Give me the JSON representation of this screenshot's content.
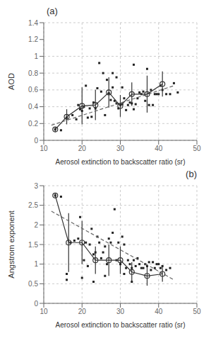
{
  "chart_data": [
    {
      "type": "scatter",
      "title": "(a)",
      "title_position": "left",
      "x_label": "Aerosol extinction to backscatter ratio (sr)",
      "y_label": "AOD",
      "xlim": [
        10,
        50
      ],
      "ylim": [
        0,
        1.4
      ],
      "xticks": [
        10,
        20,
        30,
        40,
        50
      ],
      "yticks": [
        0,
        0.2,
        0.4,
        0.6,
        0.8,
        1,
        1.2,
        1.4
      ],
      "grid": true,
      "series": [
        {
          "type": "scatter",
          "marker": "square",
          "color": "#222222",
          "x": [
            13.0,
            14.5,
            16.0,
            17.5,
            18.5,
            19.0,
            19.5,
            20.0,
            20.5,
            21.0,
            21.5,
            22.0,
            22.5,
            23.0,
            23.5,
            24.0,
            24.5,
            25.0,
            25.5,
            26.0,
            26.5,
            27.0,
            27.5,
            28.0,
            28.5,
            29.0,
            29.5,
            30.0,
            30.5,
            31.0,
            31.5,
            32.0,
            32.5,
            33.0,
            33.5,
            34.0,
            34.5,
            35.0,
            35.5,
            36.0,
            36.5,
            37.0,
            37.5,
            38.0,
            38.5,
            39.0,
            39.5,
            40.0,
            40.5,
            41.0,
            42.0,
            43.0,
            44.0,
            45.0,
            28.0,
            29.0,
            30.5,
            33.5
          ],
          "values": [
            0.13,
            0.12,
            0.27,
            0.3,
            0.25,
            0.42,
            0.37,
            0.35,
            0.4,
            0.65,
            0.27,
            0.38,
            0.28,
            0.45,
            0.38,
            0.62,
            0.92,
            0.58,
            0.8,
            0.3,
            0.72,
            0.56,
            0.48,
            0.63,
            0.47,
            0.44,
            0.38,
            0.42,
            0.43,
            0.5,
            0.36,
            0.42,
            0.45,
            0.44,
            0.37,
            0.43,
            0.5,
            0.57,
            0.55,
            0.58,
            0.47,
            0.85,
            0.42,
            0.6,
            0.42,
            0.55,
            0.55,
            0.55,
            0.65,
            0.6,
            0.55,
            0.55,
            0.68,
            0.57,
            0.8,
            0.75,
            0.63,
            0.9
          ]
        },
        {
          "type": "line",
          "line_style": "dashed",
          "color": "#666666",
          "x": [
            12,
            44
          ],
          "values": [
            0.18,
            0.65
          ]
        },
        {
          "type": "line",
          "marker": "circle",
          "color": "#333333",
          "x": [
            13.0,
            16.0,
            20.0,
            23.5,
            27.0,
            30.0,
            33.0,
            37.0,
            41.0
          ],
          "values": [
            0.13,
            0.28,
            0.41,
            0.42,
            0.57,
            0.41,
            0.55,
            0.55,
            0.67
          ],
          "error": [
            0.03,
            0.09,
            0.22,
            0.18,
            0.18,
            0.13,
            0.14,
            0.22,
            0.15
          ]
        }
      ]
    },
    {
      "type": "scatter",
      "title": "(b)",
      "title_position": "right",
      "x_label": "Aerosol extinction to backscatter ratio (sr)",
      "y_label": "Angstrom exponent",
      "xlim": [
        10,
        50
      ],
      "ylim": [
        0,
        3
      ],
      "xticks": [
        10,
        20,
        30,
        40,
        50
      ],
      "yticks": [
        0,
        0.5,
        1,
        1.5,
        2,
        2.5,
        3
      ],
      "grid": true,
      "series": [
        {
          "type": "scatter",
          "marker": "square",
          "color": "#222222",
          "x": [
            13.0,
            14.5,
            16.0,
            17.0,
            18.0,
            19.0,
            19.5,
            20.0,
            20.5,
            21.0,
            21.5,
            22.0,
            22.5,
            23.0,
            23.5,
            24.0,
            24.5,
            25.0,
            25.5,
            26.0,
            26.5,
            27.0,
            27.5,
            28.0,
            28.5,
            29.0,
            29.5,
            30.0,
            30.5,
            31.0,
            31.5,
            32.0,
            32.5,
            33.0,
            33.5,
            34.0,
            34.5,
            35.0,
            35.5,
            36.0,
            36.5,
            37.0,
            37.5,
            38.0,
            38.5,
            39.0,
            39.5,
            40.0,
            40.5,
            41.0,
            42.0,
            43.0,
            16.0,
            23.0,
            26.0,
            31.0,
            33.0
          ],
          "values": [
            2.75,
            2.72,
            0.75,
            1.55,
            1.6,
            1.65,
            2.2,
            0.65,
            1.1,
            1.55,
            0.95,
            1.5,
            1.9,
            1.25,
            1.3,
            1.7,
            1.55,
            1.15,
            1.3,
            1.45,
            1.0,
            1.65,
            1.55,
            1.8,
            2.4,
            1.1,
            1.55,
            1.0,
            1.7,
            1.5,
            0.9,
            1.1,
            1.0,
            0.9,
            1.1,
            0.95,
            1.15,
            1.0,
            0.9,
            0.9,
            1.0,
            0.95,
            1.05,
            0.85,
            1.05,
            0.9,
            1.0,
            1.0,
            0.9,
            0.95,
            0.85,
            0.9,
            0.6,
            0.55,
            0.7,
            0.75,
            0.55
          ]
        },
        {
          "type": "line",
          "line_style": "dashed",
          "color": "#666666",
          "x": [
            12,
            44
          ],
          "values": [
            2.35,
            0.6
          ]
        },
        {
          "type": "line",
          "marker": "circle",
          "color": "#333333",
          "x": [
            13.0,
            16.5,
            20.0,
            23.5,
            27.0,
            30.0,
            33.0,
            37.0,
            41.0
          ],
          "values": [
            2.75,
            1.55,
            1.55,
            1.1,
            1.1,
            1.1,
            0.8,
            0.7,
            0.75
          ],
          "error": [
            0.05,
            0.75,
            0.55,
            0.35,
            0.4,
            0.35,
            0.25,
            0.25,
            0.2
          ]
        }
      ]
    }
  ]
}
